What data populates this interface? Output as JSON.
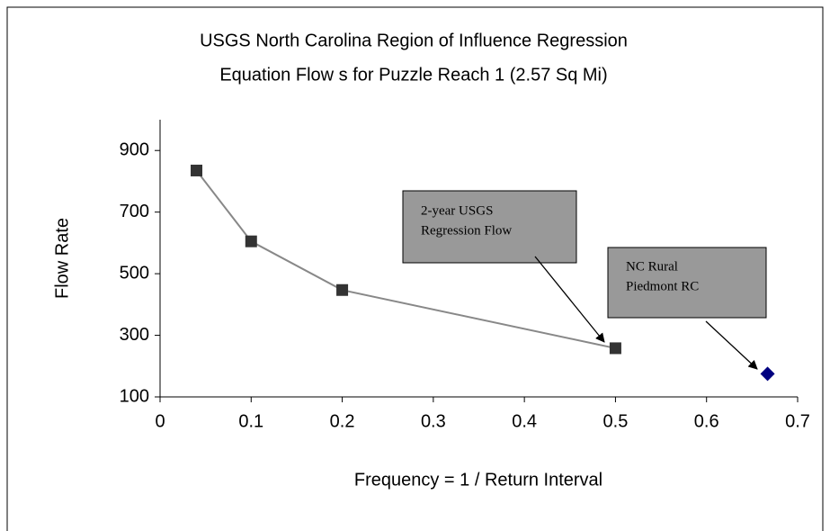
{
  "chart_data": {
    "type": "scatter",
    "title": [
      "USGS North Carolina Region of Influence Regression",
      "Equation Flow s for Puzzle Reach 1 (2.57 Sq Mi)"
    ],
    "x_label": "Frequency = 1 / Return Interval",
    "y_label": "Flow Rate",
    "xlim": [
      0,
      0.7
    ],
    "xticks": [
      0,
      0.1,
      0.2,
      0.3,
      0.4,
      0.5,
      0.6,
      0.7
    ],
    "ylim": [
      100,
      1000
    ],
    "yticks": [
      100,
      300,
      500,
      700,
      900
    ],
    "series": [
      {
        "color": "#333333",
        "line_color": "#888888",
        "marker": "square",
        "x": [
          0.04,
          0.1,
          0.2,
          0.5
        ],
        "values": [
          835,
          605,
          447,
          258
        ]
      },
      {
        "color": "#000080",
        "marker": "diamond",
        "x": [
          0.667
        ],
        "values": [
          175
        ]
      }
    ],
    "annotations": [
      {
        "text": [
          "2-year USGS",
          "Regression Flow"
        ]
      },
      {
        "text": [
          "NC Rural",
          "Piedmont RC"
        ]
      }
    ]
  }
}
